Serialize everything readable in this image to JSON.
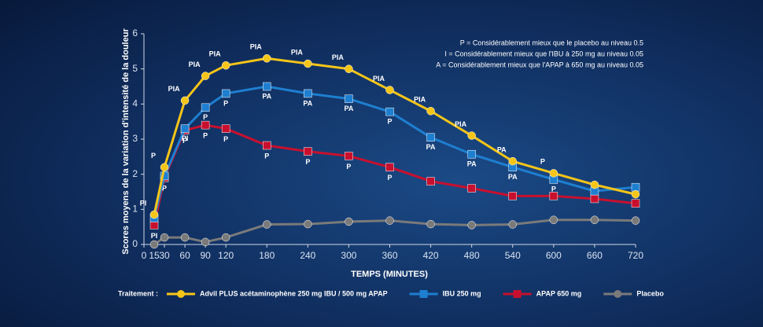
{
  "chart_data": {
    "type": "line",
    "y_label": "Scores moyens de la variation d'intensité de la douleur",
    "x_label": "TEMPS (MINUTES)",
    "notes": [
      "P = Considérablement mieux que le placebo au niveau 0.5",
      "I = Considérablement mieux que l'IBU à 250 mg au niveau 0.05",
      "A = Considérablement mieux que l'APAP à 650 mg au niveau 0.05"
    ],
    "legend_title": "Traitement :",
    "x": [
      15,
      30,
      60,
      90,
      120,
      180,
      240,
      300,
      360,
      420,
      480,
      540,
      600,
      660,
      720
    ],
    "xlim": [
      0,
      720
    ],
    "xticks": [
      0,
      15,
      30,
      60,
      90,
      120,
      180,
      240,
      300,
      360,
      420,
      480,
      540,
      600,
      660,
      720
    ],
    "ylim": [
      0,
      6
    ],
    "yticks": [
      0,
      1,
      2,
      3,
      4,
      5,
      6
    ],
    "series": [
      {
        "name": "Advil PLUS acétaminophène 250 mg IBU / 500 mg APAP",
        "color": "#f5c518",
        "values": [
          0.85,
          2.2,
          4.1,
          4.8,
          5.1,
          5.3,
          5.15,
          5.0,
          4.4,
          3.8,
          3.1,
          2.37,
          2.03,
          1.7,
          1.43
        ],
        "annotations": [
          "PI",
          "P",
          "PIA",
          "PIA",
          "PIA",
          "PIA",
          "PIA",
          "PIA",
          "PIA",
          "PIA",
          "PIA",
          "PA",
          "P",
          null,
          null
        ]
      },
      {
        "name": "IBU 250 mg",
        "color": "#1e7fd0",
        "values": [
          0.75,
          1.95,
          3.3,
          3.9,
          4.3,
          4.5,
          4.3,
          4.15,
          3.78,
          3.05,
          2.57,
          2.2,
          1.85,
          1.52,
          1.63
        ],
        "annotations": [
          null,
          null,
          "PI",
          "P",
          "P",
          "PA",
          "PA",
          "PA",
          "P",
          "PA",
          "PA",
          "PA",
          "P",
          null,
          null
        ]
      },
      {
        "name": "APAP 650 mg",
        "color": "#c8102e",
        "values": [
          0.55,
          1.9,
          3.25,
          3.4,
          3.3,
          2.82,
          2.65,
          2.52,
          2.2,
          1.8,
          1.6,
          1.38,
          1.38,
          1.3,
          1.17
        ],
        "annotations": [
          "PI",
          "P",
          "P",
          "P",
          "P",
          "P",
          "P",
          "P",
          "P",
          null,
          null,
          null,
          null,
          null,
          null
        ]
      },
      {
        "name": "Placebo",
        "color": "#7a7a7a",
        "values": [
          0.0,
          0.2,
          0.2,
          0.07,
          0.2,
          0.57,
          0.58,
          0.65,
          0.68,
          0.58,
          0.55,
          0.57,
          0.7,
          0.7,
          0.68
        ]
      }
    ]
  }
}
